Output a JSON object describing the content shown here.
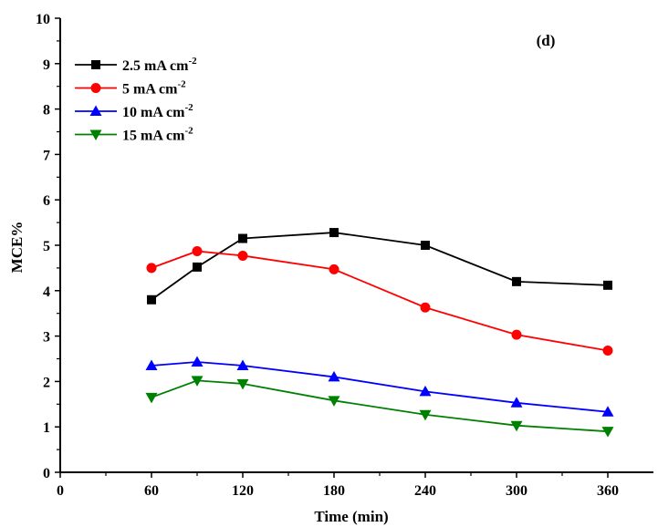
{
  "chart_data": {
    "type": "line",
    "title": "",
    "annotation": "(d)",
    "xlabel": "Time (min)",
    "ylabel": "MCE%",
    "xlim": [
      0,
      390
    ],
    "ylim": [
      0,
      10
    ],
    "x_ticks": [
      0,
      60,
      120,
      180,
      240,
      300,
      360
    ],
    "y_ticks": [
      0,
      1,
      2,
      3,
      4,
      5,
      6,
      7,
      8,
      9,
      10
    ],
    "grid": false,
    "legend_position": "top-left",
    "x": [
      60,
      90,
      120,
      180,
      240,
      300,
      360
    ],
    "series": [
      {
        "name": "2.5 mA cm",
        "superscript": "-2",
        "color": "#000000",
        "marker": "square",
        "values": [
          3.8,
          4.52,
          5.15,
          5.28,
          5.0,
          4.2,
          4.12
        ]
      },
      {
        "name": "5 mA cm",
        "superscript": "-2",
        "color": "#ff0000",
        "marker": "circle",
        "values": [
          4.5,
          4.87,
          4.77,
          4.47,
          3.63,
          3.03,
          2.68
        ]
      },
      {
        "name": "10 mA cm",
        "superscript": "-2",
        "color": "#0000ff",
        "marker": "triangle-up",
        "values": [
          2.35,
          2.43,
          2.35,
          2.1,
          1.78,
          1.53,
          1.33
        ]
      },
      {
        "name": "15 mA cm",
        "superscript": "-2",
        "color": "#008000",
        "marker": "triangle-down",
        "values": [
          1.65,
          2.02,
          1.95,
          1.58,
          1.27,
          1.03,
          0.9
        ]
      }
    ]
  }
}
